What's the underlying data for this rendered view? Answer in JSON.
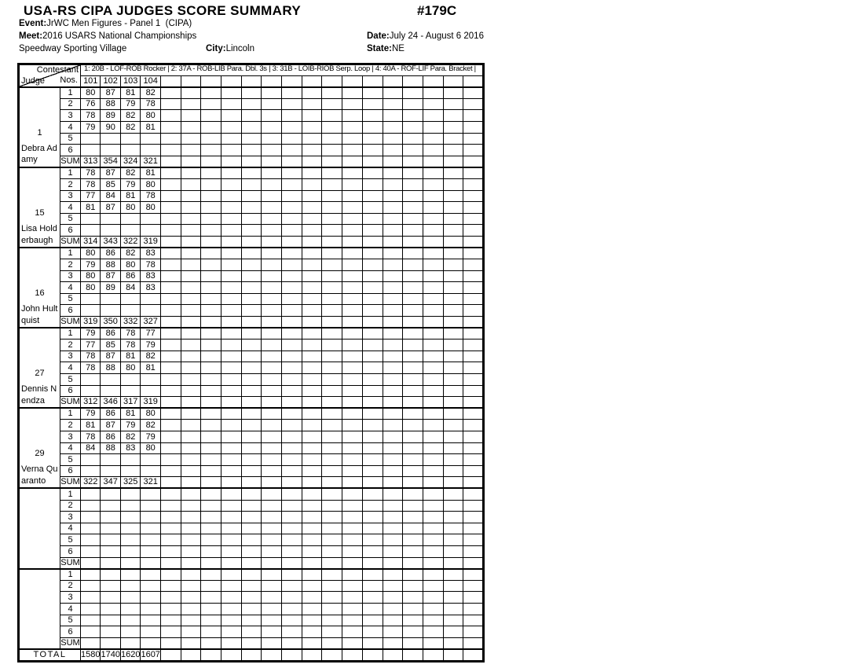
{
  "header": {
    "title": "USA-RS CIPA JUDGES SCORE SUMMARY",
    "doc_number": "#179C",
    "event_label": "Event:",
    "event_value": "JrWC Men Figures - Panel 1  (CIPA)",
    "meet_label": "Meet:",
    "meet_value": "2016 USARS National Championships",
    "date_label": "Date:",
    "date_value": "July 24 - August 6 2016",
    "venue": "Speedway Sporting Village",
    "city_label": "City:",
    "city_value": "Lincoln",
    "state_label": "State:",
    "state_value": "NE"
  },
  "table": {
    "corner": {
      "top_label": "Contestant",
      "mid_label": "Nos.",
      "bottom_label": "Judge"
    },
    "figures_header": "1: 20B - LOF-ROB Rocker | 2: 37A - ROB-LIB Para. Dbl. 3s | 3: 31B - LOIB-RIOB Serp. Loop | 4: 40A - ROF-LIF Para. Bracket |",
    "contestant_numbers": [
      "101",
      "102",
      "103",
      "104"
    ],
    "num_score_columns": 20,
    "row_labels": [
      "1",
      "2",
      "3",
      "4",
      "5",
      "6",
      "SUM"
    ],
    "total_label": "TOTAL",
    "total_values": [
      "1580",
      "1740",
      "1620",
      "1607"
    ],
    "judges": [
      {
        "number": "1",
        "name": "Debra Adamy",
        "rows": [
          [
            "80",
            "87",
            "81",
            "82"
          ],
          [
            "76",
            "88",
            "79",
            "78"
          ],
          [
            "78",
            "89",
            "82",
            "80"
          ],
          [
            "79",
            "90",
            "82",
            "81"
          ],
          [],
          []
        ],
        "sum": [
          "313",
          "354",
          "324",
          "321"
        ]
      },
      {
        "number": "15",
        "name": "Lisa Holderbaugh",
        "rows": [
          [
            "78",
            "87",
            "82",
            "81"
          ],
          [
            "78",
            "85",
            "79",
            "80"
          ],
          [
            "77",
            "84",
            "81",
            "78"
          ],
          [
            "81",
            "87",
            "80",
            "80"
          ],
          [],
          []
        ],
        "sum": [
          "314",
          "343",
          "322",
          "319"
        ]
      },
      {
        "number": "16",
        "name": "John Hultquist",
        "rows": [
          [
            "80",
            "86",
            "82",
            "83"
          ],
          [
            "79",
            "88",
            "80",
            "78"
          ],
          [
            "80",
            "87",
            "86",
            "83"
          ],
          [
            "80",
            "89",
            "84",
            "83"
          ],
          [],
          []
        ],
        "sum": [
          "319",
          "350",
          "332",
          "327"
        ]
      },
      {
        "number": "27",
        "name": "Dennis Nendza",
        "rows": [
          [
            "79",
            "86",
            "78",
            "77"
          ],
          [
            "77",
            "85",
            "78",
            "79"
          ],
          [
            "78",
            "87",
            "81",
            "82"
          ],
          [
            "78",
            "88",
            "80",
            "81"
          ],
          [],
          []
        ],
        "sum": [
          "312",
          "346",
          "317",
          "319"
        ]
      },
      {
        "number": "29",
        "name": "Verna Quaranto",
        "rows": [
          [
            "79",
            "86",
            "81",
            "80"
          ],
          [
            "81",
            "87",
            "79",
            "82"
          ],
          [
            "78",
            "86",
            "82",
            "79"
          ],
          [
            "84",
            "88",
            "83",
            "80"
          ],
          [],
          []
        ],
        "sum": [
          "322",
          "347",
          "325",
          "321"
        ]
      },
      {
        "number": "",
        "name": "",
        "rows": [
          [],
          [],
          [],
          [],
          [],
          []
        ],
        "sum": []
      },
      {
        "number": "",
        "name": "",
        "rows": [
          [],
          [],
          [],
          [],
          [],
          []
        ],
        "sum": []
      }
    ]
  },
  "colors": {
    "ink": "#000000",
    "paper": "#ffffff"
  }
}
